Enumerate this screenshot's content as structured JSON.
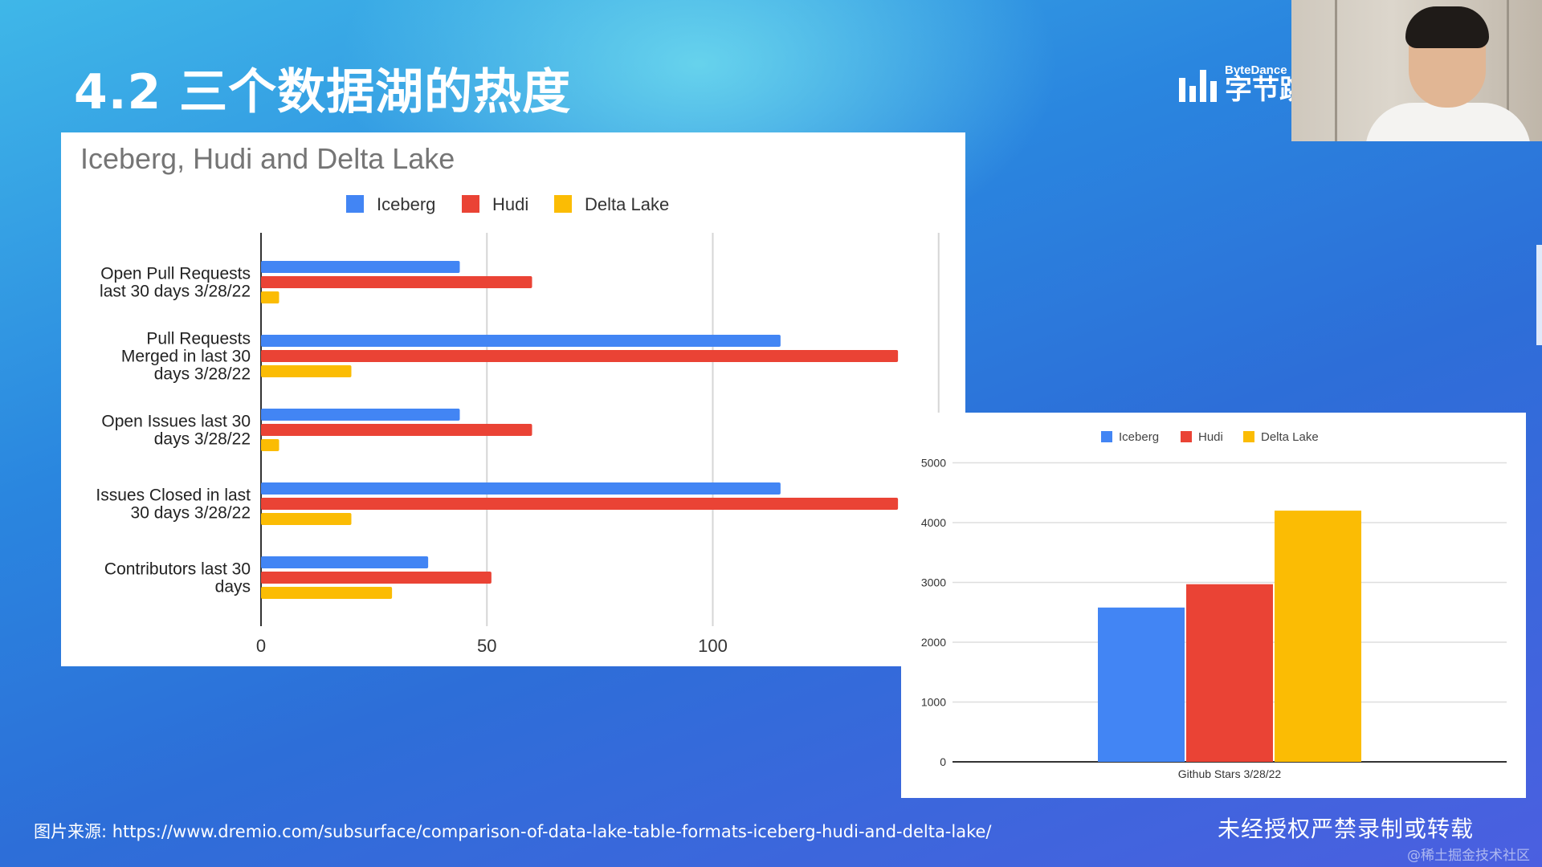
{
  "slide": {
    "title": "4.2 三个数据湖的热度",
    "logo_en": "ByteDance",
    "logo_cn": "字节跳"
  },
  "footer": {
    "source": "图片来源: https://www.dremio.com/subsurface/comparison-of-data-lake-table-formats-iceberg-hudi-and-delta-lake/",
    "notice": "未经授权严禁录制或转载",
    "watermark": "@稀土掘金技术社区"
  },
  "colors": {
    "iceberg": "#4285f4",
    "hudi": "#ea4335",
    "delta": "#fbbc04"
  },
  "chart_data": [
    {
      "type": "bar",
      "orientation": "horizontal",
      "title": "Iceberg, Hudi and Delta Lake",
      "categories": [
        [
          "Open Pull Requests",
          "last 30 days 3/28/22"
        ],
        [
          "Pull Requests",
          "Merged in last 30",
          "days 3/28/22"
        ],
        [
          "Open Issues last 30",
          "days 3/28/22"
        ],
        [
          "Issues Closed in last",
          "30 days 3/28/22"
        ],
        [
          "Contributors last 30",
          "days"
        ]
      ],
      "series": [
        {
          "name": "Iceberg",
          "values": [
            44,
            115,
            44,
            115,
            37
          ]
        },
        {
          "name": "Hudi",
          "values": [
            60,
            141,
            60,
            141,
            51
          ]
        },
        {
          "name": "Delta Lake",
          "values": [
            4,
            20,
            4,
            20,
            29
          ]
        }
      ],
      "xticks": [
        0,
        50,
        100
      ],
      "xlim": [
        0,
        150
      ],
      "grid": true,
      "legend": "top"
    },
    {
      "type": "bar",
      "categories": [
        "Github Stars 3/28/22"
      ],
      "series": [
        {
          "name": "Iceberg",
          "values": [
            2580
          ]
        },
        {
          "name": "Hudi",
          "values": [
            2970
          ]
        },
        {
          "name": "Delta Lake",
          "values": [
            4200
          ]
        }
      ],
      "yticks": [
        0,
        1000,
        2000,
        3000,
        4000,
        5000
      ],
      "ylim": [
        0,
        5000
      ],
      "grid": true,
      "legend": "top"
    }
  ]
}
